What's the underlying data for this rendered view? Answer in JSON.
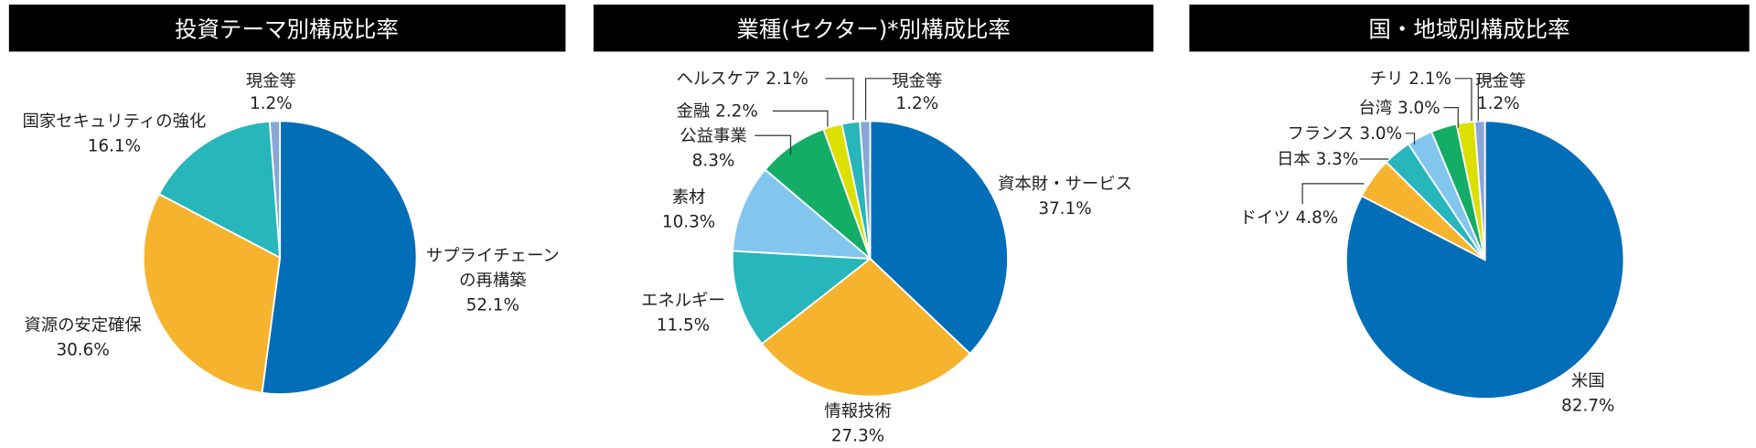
{
  "colors": {
    "blue": "#036eb8",
    "yellow": "#f6b42e",
    "teal": "#27b6bb",
    "light_blue": "#82c6ee",
    "green": "#14ad65",
    "lime": "#dbe000",
    "gray_blue": "#8aa6d6"
  },
  "chart_data": [
    {
      "type": "pie",
      "title": "投資テーマ別構成比率",
      "start": "top, clockwise",
      "slices": [
        {
          "label": "サプライチェーンの再構築",
          "label_lines": [
            "サプライチェーン",
            "の再構築"
          ],
          "value": 52.1,
          "value_label": "52.1%",
          "color": "#036eb8"
        },
        {
          "label": "資源の安定確保",
          "label_lines": [
            "資源の安定確保"
          ],
          "value": 30.6,
          "value_label": "30.6%",
          "color": "#f6b42e"
        },
        {
          "label": "国家セキュリティの強化",
          "label_lines": [
            "国家セキュリティの強化"
          ],
          "value": 16.1,
          "value_label": "16.1%",
          "color": "#27b6bb"
        },
        {
          "label": "現金等",
          "label_lines": [
            "現金等"
          ],
          "value": 1.2,
          "value_label": "1.2%",
          "color": "#8aa6d6"
        }
      ]
    },
    {
      "type": "pie",
      "title": "業種(セクター)*別構成比率",
      "start": "top, clockwise",
      "slices": [
        {
          "label": "資本財・サービス",
          "value": 37.1,
          "value_label": "37.1%",
          "color": "#036eb8"
        },
        {
          "label": "情報技術",
          "value": 27.3,
          "value_label": "27.3%",
          "color": "#f6b42e"
        },
        {
          "label": "エネルギー",
          "value": 11.5,
          "value_label": "11.5%",
          "color": "#27b6bb"
        },
        {
          "label": "素材",
          "value": 10.3,
          "value_label": "10.3%",
          "color": "#82c6ee"
        },
        {
          "label": "公益事業",
          "value": 8.3,
          "value_label": "8.3%",
          "color": "#14ad65"
        },
        {
          "label": "金融",
          "value": 2.2,
          "value_label": "2.2%",
          "color": "#dbe000"
        },
        {
          "label": "ヘルスケア",
          "value": 2.1,
          "value_label": "2.1%",
          "color": "#27b6bb"
        },
        {
          "label": "現金等",
          "value": 1.2,
          "value_label": "1.2%",
          "color": "#8aa6d6"
        }
      ]
    },
    {
      "type": "pie",
      "title": "国・地域別構成比率",
      "start": "top, clockwise",
      "slices": [
        {
          "label": "米国",
          "value": 82.7,
          "value_label": "82.7%",
          "color": "#036eb8"
        },
        {
          "label": "ドイツ",
          "value": 4.8,
          "value_label": "4.8%",
          "color": "#f6b42e"
        },
        {
          "label": "日本",
          "value": 3.3,
          "value_label": "3.3%",
          "color": "#27b6bb"
        },
        {
          "label": "フランス",
          "value": 3.0,
          "value_label": "3.0%",
          "color": "#82c6ee"
        },
        {
          "label": "台湾",
          "value": 3.0,
          "value_label": "3.0%",
          "color": "#14ad65"
        },
        {
          "label": "チリ",
          "value": 2.1,
          "value_label": "2.1%",
          "color": "#dbe000"
        },
        {
          "label": "現金等",
          "value": 1.2,
          "value_label": "1.2%",
          "color": "#8aa6d6"
        }
      ]
    }
  ]
}
